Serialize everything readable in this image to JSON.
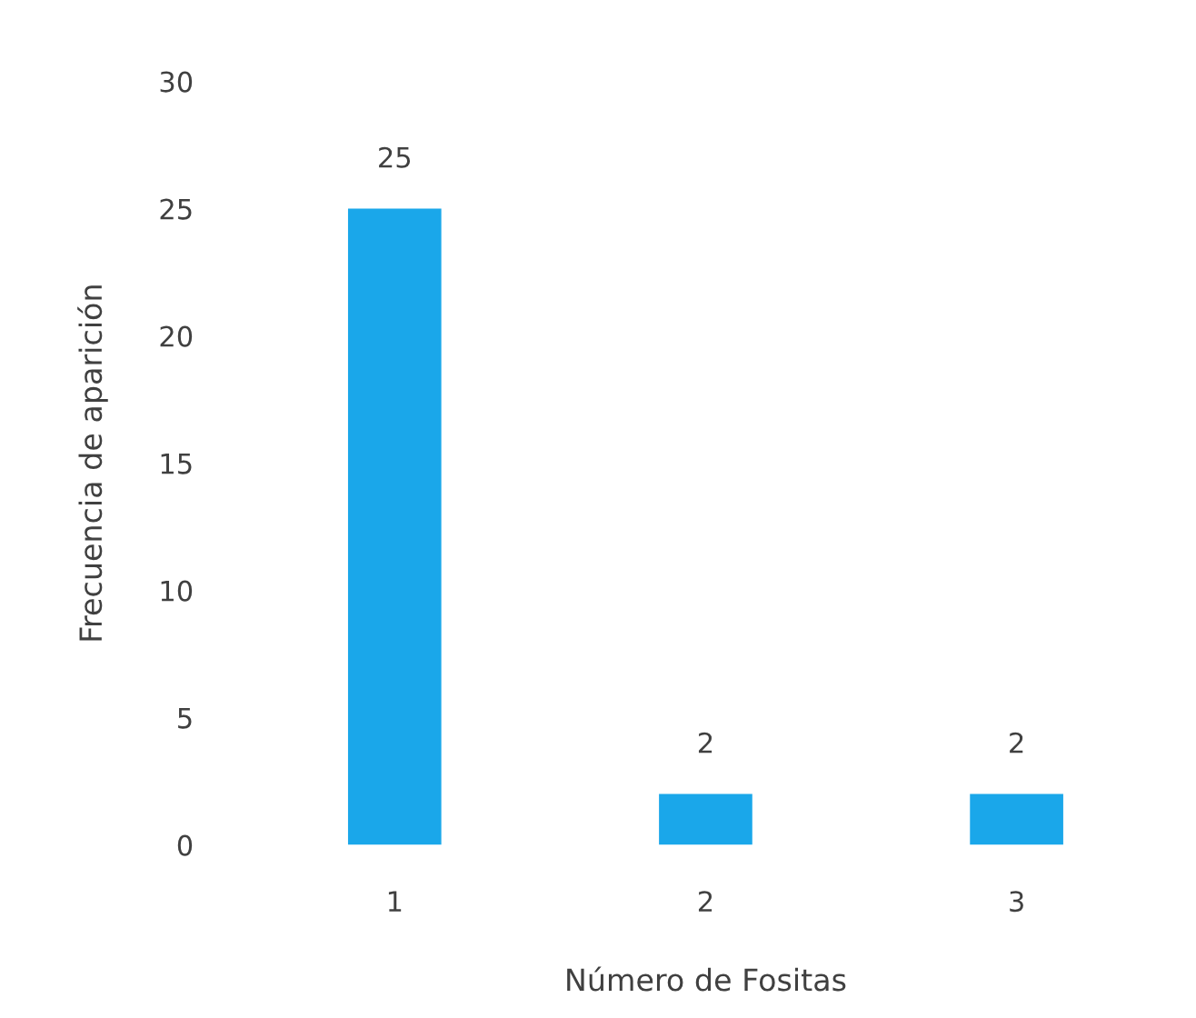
{
  "chart_data": {
    "type": "bar",
    "xlabel": "Número de Fositas",
    "ylabel": "Frecuencia de aparición",
    "categories": [
      "1",
      "2",
      "3"
    ],
    "values": [
      25,
      2,
      2
    ],
    "color": "#1aa7ea",
    "ylim": [
      0,
      30
    ],
    "yticks": [
      0,
      5,
      10,
      15,
      20,
      25,
      30
    ],
    "data_labels": true,
    "grid": false,
    "legend": false
  }
}
